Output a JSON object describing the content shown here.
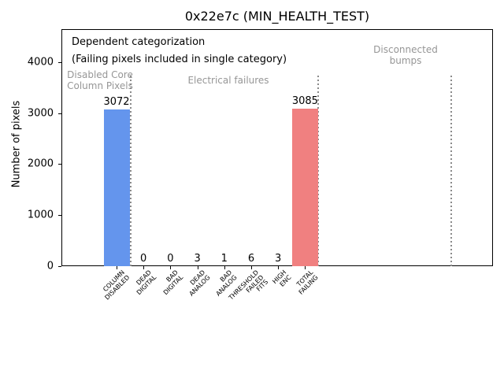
{
  "chart_data": {
    "type": "bar",
    "title": "0x22e7c (MIN_HEALTH_TEST)",
    "ylabel": "Number of pixels",
    "xlabel": "",
    "categories": [
      "COLUMN\nDISABLED",
      "DEAD\nDIGITAL",
      "BAD\nDIGITAL",
      "DEAD\nANALOG",
      "BAD\nANALOG",
      "THRESHOLD\nFAILED\nFITS",
      "HIGH\nENC",
      "TOTAL\nFAILING"
    ],
    "values": [
      3072,
      0,
      0,
      3,
      1,
      6,
      3,
      3085
    ],
    "bar_colors": [
      "#6495ed",
      "#6495ed",
      "#6495ed",
      "#6495ed",
      "#6495ed",
      "#6495ed",
      "#6495ed",
      "#f08080"
    ],
    "yticks": [
      0,
      1000,
      2000,
      3000,
      4000
    ],
    "ylim": [
      0,
      4645
    ],
    "grid": false,
    "legend": "none",
    "value_labels_shown": true,
    "annotations": {
      "dependent_line1": "Dependent categorization",
      "dependent_line2": "(Failing pixels included in single category)",
      "section_labels": [
        {
          "text": "Disabled Core\nColumn Pixels",
          "color": "#969696"
        },
        {
          "text": "Electrical failures",
          "color": "#969696"
        },
        {
          "text": "Disconnected\nbumps",
          "color": "#969696"
        }
      ],
      "divider_style": {
        "line": "dotted",
        "color": "#8a8a8a"
      },
      "dividers_after_category_index": [
        0,
        7
      ],
      "has_far_right_divider": true
    }
  }
}
